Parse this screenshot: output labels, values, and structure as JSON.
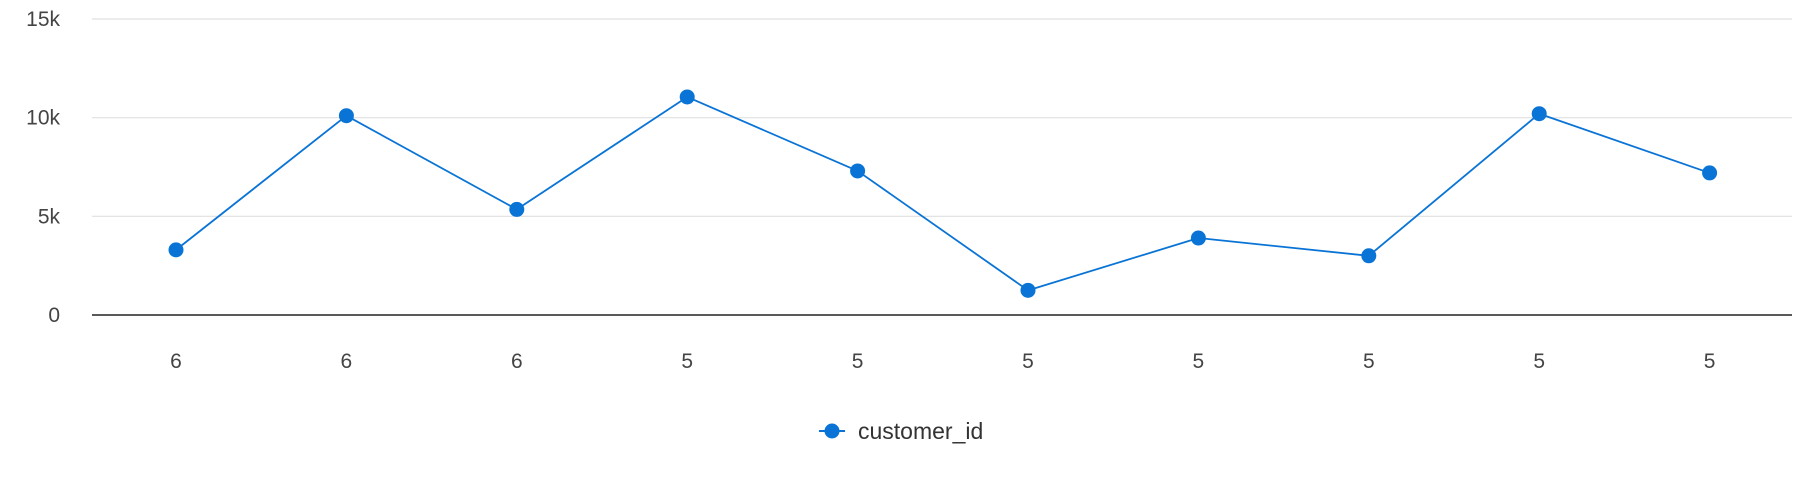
{
  "chart_data": {
    "type": "line",
    "categories": [
      "6",
      "6",
      "6",
      "5",
      "5",
      "5",
      "5",
      "5",
      "5",
      "5"
    ],
    "series": [
      {
        "name": "customer_id",
        "values": [
          3300,
          10100,
          5350,
          11050,
          7300,
          1250,
          3900,
          3000,
          10200,
          7200
        ],
        "color": "#0a74d6"
      }
    ],
    "y_ticks": [
      "0",
      "5k",
      "10k",
      "15k"
    ],
    "ylim": [
      0,
      15000
    ],
    "grid": true,
    "legend_position": "bottom-center"
  }
}
